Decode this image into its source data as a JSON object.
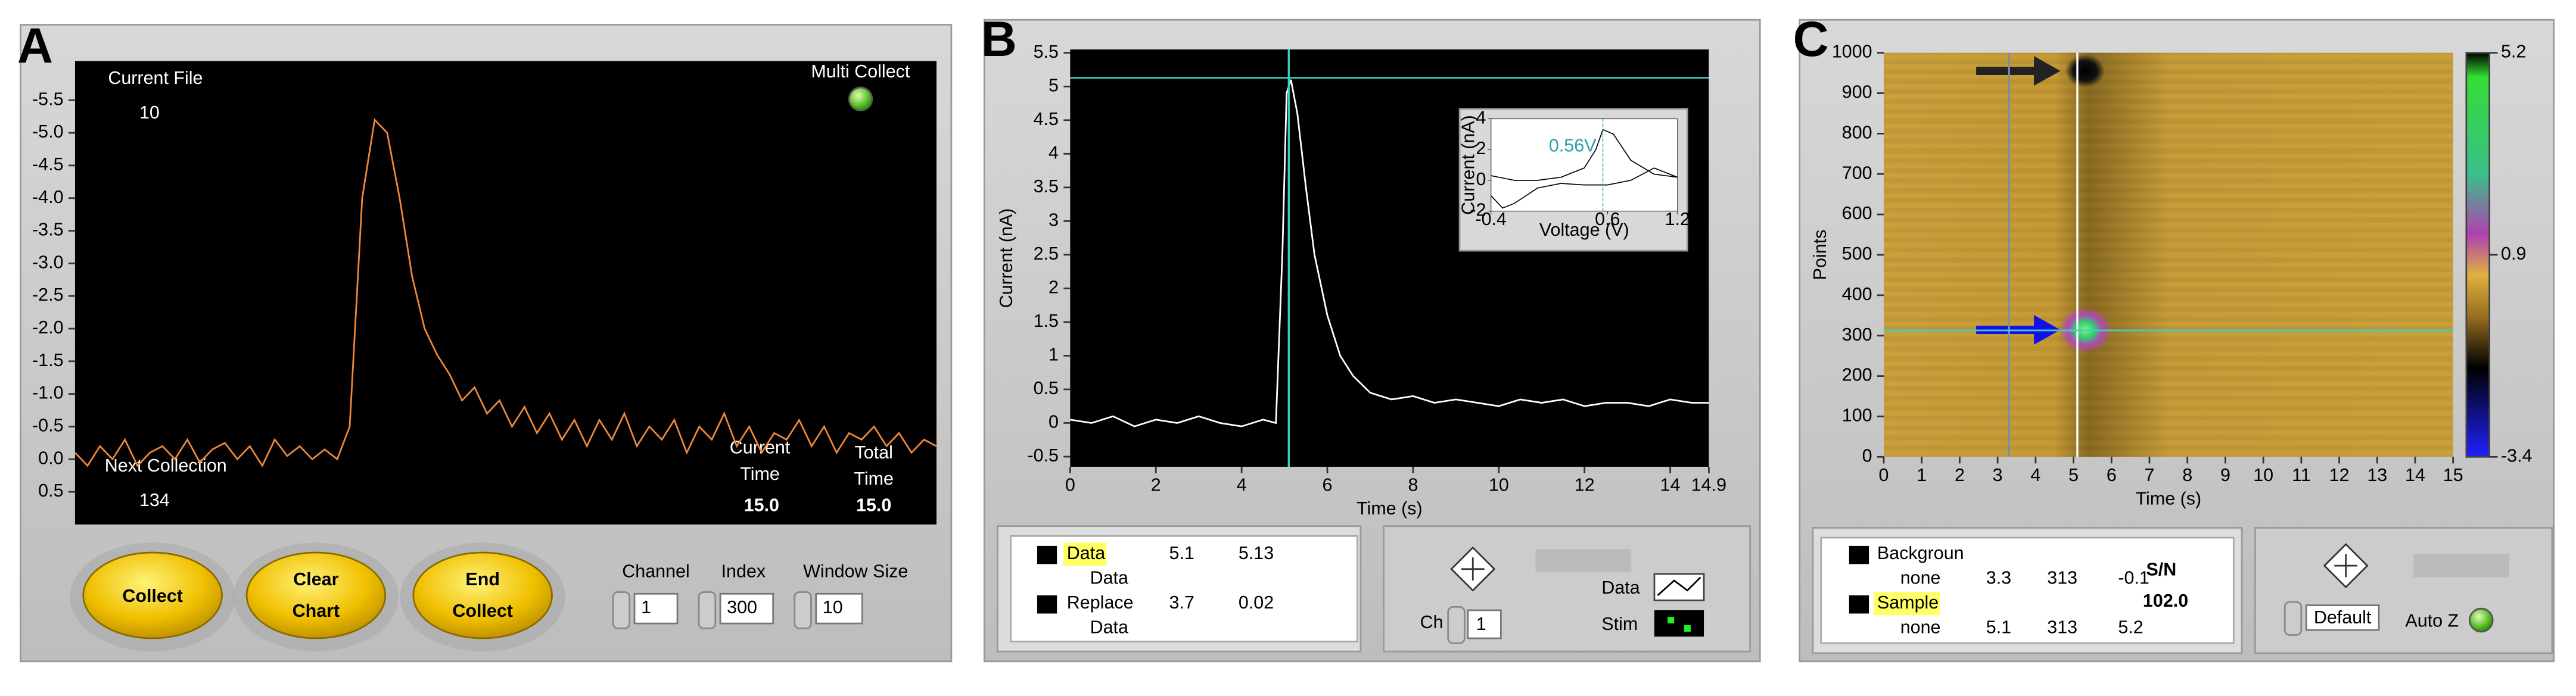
{
  "ui": {
    "panel_labels": [
      "A",
      "B",
      "C"
    ],
    "panel_a": {
      "current_file_label": "Current File",
      "current_file": "10",
      "multi_collect": "Multi Collect",
      "next_collection_label": "Next Collection",
      "next_collection": "134",
      "current_time_label": [
        "Current",
        "Time"
      ],
      "current_time": "15.0",
      "total_time_label": [
        "Total",
        "Time"
      ],
      "total_time": "15.0",
      "buttons": [
        [
          "Collect"
        ],
        [
          "Clear",
          "Chart"
        ],
        [
          "End",
          "Collect"
        ]
      ],
      "controls": [
        {
          "label": "Channel",
          "value": "1"
        },
        {
          "label": "Index",
          "value": "300"
        },
        {
          "label": "Window Size",
          "value": "10"
        }
      ]
    },
    "panel_b": {
      "channel_label": "Ch",
      "channel": "1",
      "data_label": "Data",
      "stim_label": "Stim"
    },
    "panel_c": {
      "sn_label": "S/N",
      "sn_value": "102.0",
      "scale_mode": "Default",
      "auto_z": "Auto Z"
    }
  },
  "chart_data": [
    {
      "type": "line",
      "color": "#f0883a",
      "y_inverted": true,
      "ylim": [
        -6.1,
        1.0
      ],
      "yticks": [
        -5.5,
        {
          "value": -5,
          "label": "-5.0"
        },
        -4.5,
        {
          "value": -4,
          "label": "-4.0"
        },
        -3.5,
        {
          "value": -3,
          "label": "-3.0"
        },
        -2.5,
        {
          "value": -2,
          "label": "-2.0"
        },
        -1.5,
        {
          "value": -1,
          "label": "-1.0"
        },
        -0.5,
        {
          "value": 0,
          "label": "0.0"
        },
        0.5
      ],
      "values": [
        -0.1,
        0.1,
        -0.2,
        0.0,
        -0.3,
        0.1,
        -0.1,
        -0.2,
        0.0,
        -0.3,
        0.05,
        -0.15,
        -0.25,
        0.0,
        -0.2,
        0.1,
        -0.3,
        -0.05,
        -0.2,
        0.0,
        -0.15,
        0.0,
        -0.5,
        -4.0,
        -5.2,
        -5.0,
        -4.0,
        -2.8,
        -2.0,
        -1.6,
        -1.3,
        -0.9,
        -1.1,
        -0.7,
        -0.9,
        -0.5,
        -0.8,
        -0.4,
        -0.7,
        -0.3,
        -0.6,
        -0.2,
        -0.6,
        -0.3,
        -0.7,
        -0.2,
        -0.5,
        -0.3,
        -0.6,
        -0.1,
        -0.5,
        -0.3,
        -0.7,
        -0.2,
        -0.5,
        -0.1,
        -0.4,
        -0.3,
        -0.6,
        -0.2,
        -0.5,
        -0.1,
        -0.4,
        -0.3,
        -0.5,
        -0.2,
        -0.4,
        -0.1,
        -0.3,
        -0.2
      ]
    },
    {
      "type": "line",
      "color": "#ffffff",
      "x_label": "Time (s)",
      "y_label": "Current (nA)",
      "xlim": [
        0,
        14.9
      ],
      "xticks": [
        0,
        2,
        4,
        6,
        8,
        10,
        12,
        14,
        14.9
      ],
      "ylim": [
        -0.65,
        5.55
      ],
      "yticks": [
        -0.5,
        0,
        0.5,
        1,
        1.5,
        2,
        2.5,
        3,
        3.5,
        4,
        4.5,
        5,
        5.5
      ],
      "x": [
        0,
        0.5,
        1,
        1.5,
        2,
        2.5,
        3,
        3.5,
        4,
        4.5,
        4.8,
        4.95,
        5.05,
        5.15,
        5.3,
        5.5,
        5.7,
        6,
        6.3,
        6.6,
        7,
        7.5,
        8,
        8.5,
        9,
        9.5,
        10,
        10.5,
        11,
        11.5,
        12,
        12.5,
        13,
        13.5,
        14,
        14.5,
        14.9
      ],
      "values": [
        0.05,
        0.0,
        0.1,
        -0.05,
        0.05,
        0.0,
        0.1,
        0.0,
        -0.05,
        0.05,
        0.0,
        2.5,
        4.9,
        5.1,
        4.6,
        3.5,
        2.5,
        1.6,
        1.0,
        0.7,
        0.45,
        0.35,
        0.4,
        0.3,
        0.35,
        0.3,
        0.25,
        0.35,
        0.3,
        0.35,
        0.25,
        0.3,
        0.3,
        0.25,
        0.35,
        0.3,
        0.3
      ],
      "cursors": [
        {
          "name": "Data",
          "sub": "Data",
          "x": 5.1,
          "y": 5.13
        },
        {
          "name": "Replace",
          "sub": "Data",
          "x": 3.7,
          "y": 0.02
        }
      ]
    },
    {
      "type": "heatmap",
      "x_label": "Time (s)",
      "y_label": "Points",
      "xlim": [
        0,
        15
      ],
      "xticks": [
        0,
        1,
        2,
        3,
        4,
        5,
        6,
        7,
        8,
        9,
        10,
        11,
        12,
        13,
        14,
        15
      ],
      "ylim": [
        0,
        1000
      ],
      "yticks": [
        0,
        100,
        200,
        300,
        400,
        500,
        600,
        700,
        800,
        900,
        1000
      ],
      "clim": [
        -3.4,
        5.2
      ],
      "cticks": [
        -3.4,
        0.9,
        5.2
      ],
      "cursors": [
        {
          "name": "Backgroun",
          "sub": "none",
          "x": 3.3,
          "y": 313,
          "z": -0.1
        },
        {
          "name": "Sample",
          "sub": "none",
          "x": 5.1,
          "y": 313,
          "z": 5.2
        }
      ]
    },
    {
      "type": "line",
      "color": "#000000",
      "x_label": "Voltage (V)",
      "y_label": "Current (nA)",
      "xlim": [
        -0.4,
        1.2
      ],
      "xticks": [
        -0.4,
        0.6,
        1.2
      ],
      "ylim": [
        -2,
        4
      ],
      "yticks": [
        -2,
        0,
        2,
        4
      ],
      "annotation": "0.56V",
      "marker_x": 0.56,
      "x": [
        -0.4,
        -0.2,
        0,
        0.2,
        0.4,
        0.5,
        0.56,
        0.65,
        0.8,
        1.0,
        1.2,
        1.0,
        0.8,
        0.6,
        0.4,
        0.2,
        0,
        -0.2,
        -0.3,
        -0.4
      ],
      "values": [
        0.3,
        0,
        0,
        0.2,
        0.8,
        2,
        3.3,
        3,
        1.3,
        0.4,
        0.2,
        0.8,
        0,
        -0.3,
        -0.3,
        -0.2,
        -0.5,
        -1.5,
        -1.8,
        -1.0
      ]
    }
  ]
}
